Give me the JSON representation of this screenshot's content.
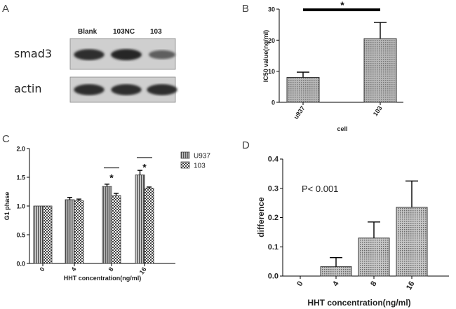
{
  "panels": {
    "A": {
      "label": "A",
      "lanes": [
        "Blank",
        "103NC",
        "103"
      ],
      "rows": [
        {
          "label": "smad3",
          "band_intensity": [
            0.95,
            1.0,
            0.55
          ]
        },
        {
          "label": "actin",
          "band_intensity": [
            0.95,
            0.95,
            0.95
          ]
        }
      ]
    },
    "B": {
      "label": "B"
    },
    "C": {
      "label": "C"
    },
    "D": {
      "label": "D"
    }
  },
  "colors": {
    "bar_fill": "#9b9b9b",
    "bar_hatch_dark": "#555555",
    "axis": "#000000"
  },
  "chart_data": [
    {
      "id": "B",
      "type": "bar",
      "categories": [
        "u937",
        "103"
      ],
      "values": [
        8.0,
        20.5
      ],
      "errors": [
        1.7,
        5.2
      ],
      "xlabel": "cell",
      "ylabel": "IC50 value(ng/ml)",
      "ylim": [
        0,
        30
      ],
      "yticks": [
        0,
        10,
        20,
        30
      ],
      "significance": [
        {
          "from": 0,
          "to": 1,
          "label": "*"
        }
      ],
      "grid": false
    },
    {
      "id": "C",
      "type": "bar",
      "categories": [
        "0",
        "4",
        "8",
        "16"
      ],
      "series": [
        {
          "name": "U937",
          "values": [
            1.0,
            1.11,
            1.34,
            1.54
          ],
          "errors": [
            0.0,
            0.04,
            0.04,
            0.08
          ]
        },
        {
          "name": "103",
          "values": [
            1.0,
            1.09,
            1.18,
            1.31
          ],
          "errors": [
            0.0,
            0.03,
            0.04,
            0.02
          ]
        }
      ],
      "xlabel": "HHT concentration(ng/ml)",
      "ylabel": "G1 phase",
      "ylim": [
        0.0,
        2.0
      ],
      "yticks": [
        "0.0",
        "0.5",
        "1.0",
        "1.5",
        "2.0"
      ],
      "significance": [
        {
          "category": 2,
          "label": "*"
        },
        {
          "category": 3,
          "label": "*"
        }
      ],
      "legend": "top-right",
      "grid": false
    },
    {
      "id": "D",
      "type": "bar",
      "categories": [
        "0",
        "4",
        "8",
        "16"
      ],
      "values": [
        0.0,
        0.032,
        0.13,
        0.235
      ],
      "errors": [
        0.0,
        0.031,
        0.055,
        0.09
      ],
      "xlabel": "HHT concentration(ng/ml)",
      "ylabel": "difference",
      "ylim": [
        0.0,
        0.4
      ],
      "yticks": [
        "0.0",
        "0.1",
        "0.2",
        "0.3",
        "0.4"
      ],
      "annotation": "P< 0.001",
      "grid": false
    }
  ]
}
